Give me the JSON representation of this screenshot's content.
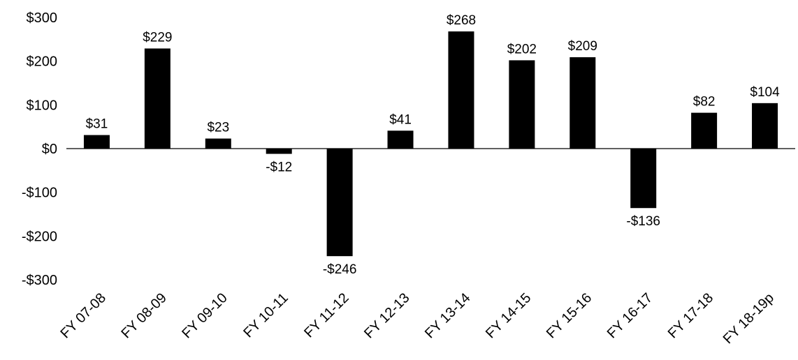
{
  "chart_data": {
    "type": "bar",
    "title": "",
    "xlabel": "",
    "ylabel": "",
    "categories": [
      "FY 07-08",
      "FY 08-09",
      "FY 09-10",
      "FY 10-11",
      "FY 11-12",
      "FY 12-13",
      "FY 13-14",
      "FY 14-15",
      "FY 15-16",
      "FY 16-17",
      "FY 17-18",
      "FY 18-19p"
    ],
    "values": [
      31,
      229,
      23,
      -12,
      -246,
      41,
      268,
      202,
      209,
      -136,
      82,
      104
    ],
    "data_labels": [
      "$31",
      "$229",
      "$23",
      "-$12",
      "-$246",
      "$41",
      "$268",
      "$202",
      "$209",
      "-$136",
      "$82",
      "$104"
    ],
    "ylim": [
      -300,
      300
    ],
    "yticks": [
      300,
      200,
      100,
      0,
      -100,
      -200,
      -300
    ],
    "ytick_labels": [
      "$300",
      "$200",
      "$100",
      "$0",
      "-$100",
      "-$200",
      "-$300"
    ],
    "bar_color": "#000000",
    "grid": false,
    "legend": "none"
  }
}
